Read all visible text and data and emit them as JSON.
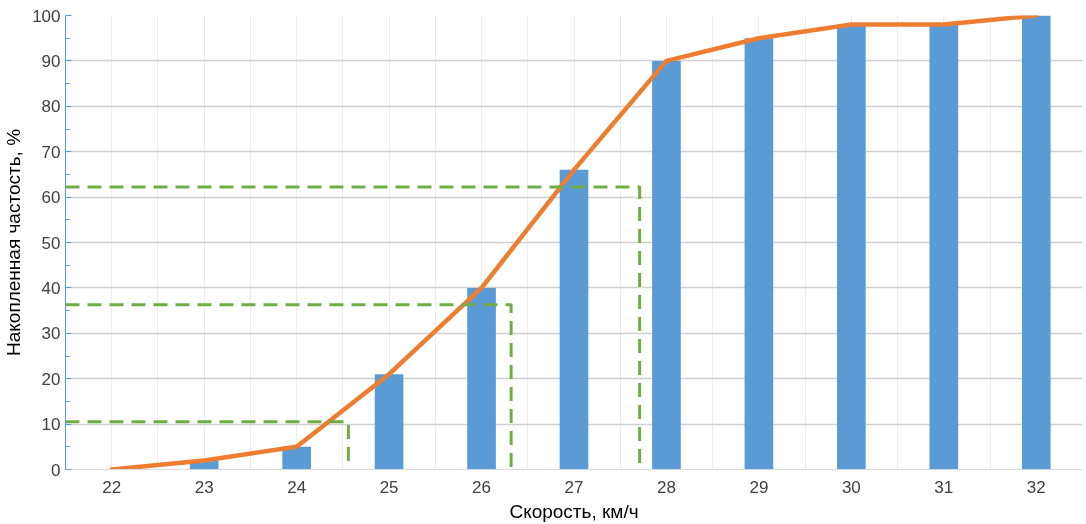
{
  "chart_data": {
    "type": "bar",
    "xlabel": "Скорость, км/ч",
    "ylabel": "Накопленная частость, %",
    "x": [
      22,
      23,
      24,
      25,
      26,
      27,
      28,
      29,
      30,
      31,
      32
    ],
    "xlim": [
      21.5,
      32.5
    ],
    "xticks": [
      22,
      23,
      24,
      25,
      26,
      27,
      28,
      29,
      30,
      31,
      32
    ],
    "ylim": [
      0,
      100
    ],
    "yticks": [
      0,
      10,
      20,
      30,
      40,
      50,
      60,
      70,
      80,
      90,
      100
    ],
    "grid": true,
    "series": [
      {
        "color": "#5b9bd5",
        "values": [
          0,
          2,
          5,
          21,
          40,
          66,
          90,
          95,
          98,
          98,
          100
        ]
      },
      {
        "type": "line",
        "color": "#ed7d31",
        "values": [
          0,
          2,
          5,
          21,
          40,
          66,
          90,
          95,
          98,
          98,
          100
        ]
      },
      {
        "type": "line",
        "color": "#70ad47",
        "line_style": "dashed",
        "x": [
          21.5,
          24.56,
          24.56
        ],
        "values": [
          10.5,
          10.5,
          0
        ]
      },
      {
        "type": "line",
        "color": "#70ad47",
        "line_style": "dashed",
        "x": [
          21.5,
          26.32,
          26.32
        ],
        "values": [
          36.3,
          36.3,
          0
        ]
      },
      {
        "type": "line",
        "color": "#70ad47",
        "line_style": "dashed",
        "x": [
          21.5,
          27.71,
          27.71
        ],
        "values": [
          62.2,
          62.2,
          0
        ]
      }
    ]
  }
}
